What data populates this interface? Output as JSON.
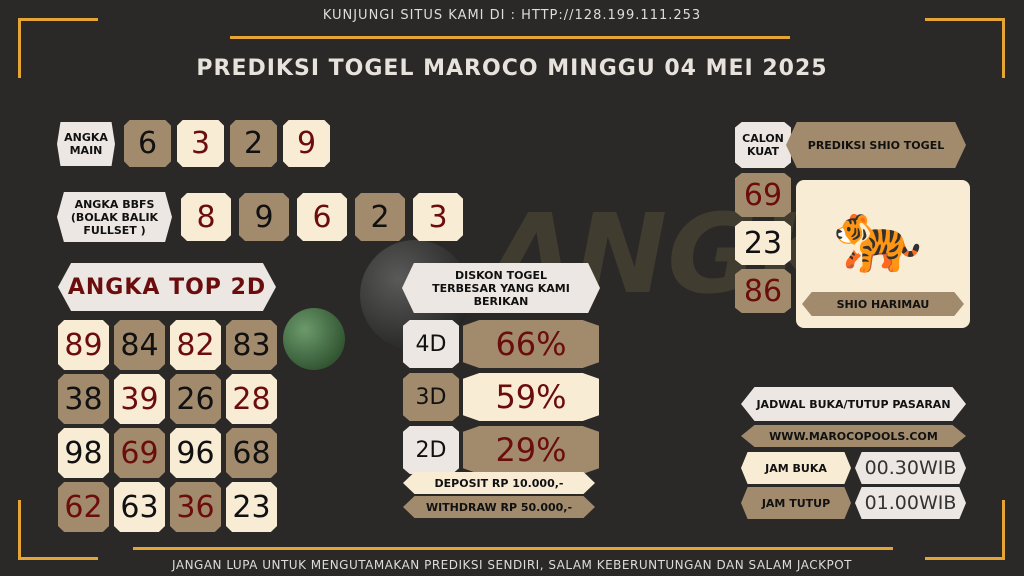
{
  "top_note": "KUNJUNGI SITUS KAMI DI : HTTP://128.199.111.253",
  "title": "PREDIKSI TOGEL MAROCO MINGGU 04 MEI 2025",
  "watermark": "ANGKA MAIN",
  "angka_main": {
    "label": "ANGKA MAIN",
    "digits": [
      "6",
      "3",
      "2",
      "9"
    ]
  },
  "bbfs": {
    "label": "ANGKA BBFS (BOLAK BALIK FULLSET )",
    "digits": [
      "8",
      "9",
      "6",
      "2",
      "3"
    ]
  },
  "top2d": {
    "label": "ANGKA TOP 2D",
    "numbers": [
      "89",
      "84",
      "82",
      "83",
      "38",
      "39",
      "26",
      "28",
      "98",
      "69",
      "96",
      "68",
      "62",
      "63",
      "36",
      "23"
    ]
  },
  "diskon": {
    "label": "DISKON TOGEL TERBESAR YANG KAMI BERIKAN",
    "rows": [
      {
        "type": "4D",
        "value": "66%"
      },
      {
        "type": "3D",
        "value": "59%"
      },
      {
        "type": "2D",
        "value": "29%"
      }
    ],
    "deposit": "DEPOSIT RP 10.000,-",
    "withdraw": "WITHDRAW RP 50.000,-"
  },
  "calon": {
    "label": "CALON KUAT",
    "numbers": [
      "69",
      "23",
      "86"
    ]
  },
  "shio": {
    "label": "PREDIKSI SHIO TOGEL",
    "name": "SHIO HARIMAU",
    "icon": "tiger-icon"
  },
  "jadwal": {
    "label": "JADWAL BUKA/TUTUP PASARAN",
    "site": "WWW.MAROCOPOOLS.COM",
    "buka_label": "JAM BUKA",
    "buka": "00.30WIB",
    "tutup_label": "JAM TUTUP",
    "tutup": "01.00WIB"
  },
  "footer": "JANGAN LUPA UNTUK MENGUTAMAKAN PREDIKSI SENDIRI, SALAM KEBERUNTUNGAN DAN SALAM JACKPOT",
  "colors": {
    "cream": "#f8ecd5",
    "tan": "#a28b6d",
    "accent": "#e5a534",
    "red": "#6b0d0d"
  }
}
